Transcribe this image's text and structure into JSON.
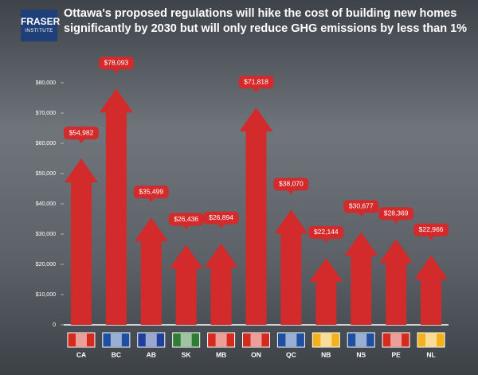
{
  "chart_data": {
    "type": "arrow-bar",
    "title": "Ottawa's proposed regulations will hike the cost of building new homes significantly by 2030 but will only reduce GHG emissions by less than 1%",
    "logo": [
      "FRASER",
      "INSTITUTE"
    ],
    "categories": [
      "CA",
      "BC",
      "AB",
      "SK",
      "MB",
      "ON",
      "QC",
      "NB",
      "NS",
      "PE",
      "NL"
    ],
    "values": [
      54982,
      78093,
      35499,
      26436,
      26894,
      71818,
      38070,
      22144,
      30677,
      28369,
      22966
    ],
    "value_labels": [
      "$54,982",
      "$78,093",
      "$35,499",
      "$26,436",
      "$26,894",
      "$71,818",
      "$38,070",
      "$22,144",
      "$30,677",
      "$28,369",
      "$22,966"
    ],
    "color": "#d32a2c",
    "ylim": [
      0,
      80000
    ],
    "yticks": [
      0,
      {
        "value": 10000,
        "label": "$10,000"
      },
      {
        "value": 20000,
        "label": "$20,000"
      },
      {
        "value": 30000,
        "label": "$30,000"
      },
      {
        "value": 40000,
        "label": "$40,000"
      },
      {
        "value": 50000,
        "label": "$50,000"
      },
      {
        "value": 60000,
        "label": "$60,000"
      },
      {
        "value": 70000,
        "label": "$70,000"
      },
      {
        "value": 80000,
        "label": "$80,000"
      }
    ]
  }
}
